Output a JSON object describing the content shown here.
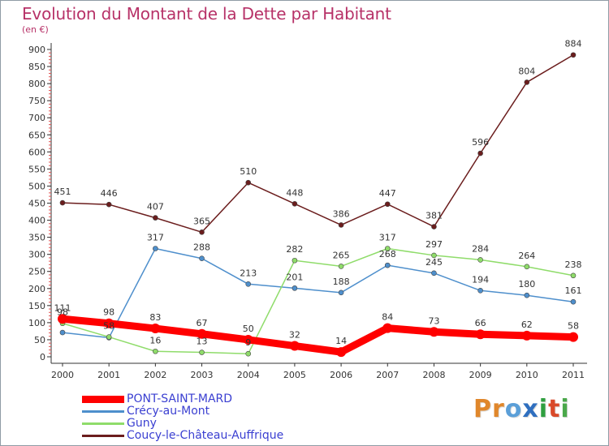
{
  "header": {
    "title": "Evolution du Montant de la Dette par Habitant",
    "subtitle": "(en €)"
  },
  "logo": {
    "text": "Proxiti",
    "colors": [
      "#e0872b",
      "#e0872b",
      "#5b9fd8",
      "#2f6fbf",
      "#2f9f3f",
      "#d94a2a",
      "#4aa84a"
    ]
  },
  "legend": {
    "items": [
      {
        "label": "PONT-SAINT-MARD",
        "color": "#ff0000"
      },
      {
        "label": "Crécy-au-Mont",
        "color": "#4e8fcc"
      },
      {
        "label": "Guny",
        "color": "#8fdc6a"
      },
      {
        "label": "Coucy-le-Château-Auffrique",
        "color": "#6b1d1d"
      }
    ]
  },
  "chart_data": {
    "type": "line",
    "title": "Evolution du Montant de la Dette par Habitant",
    "ylabel": "(en €)",
    "xlabel": "",
    "x": [
      "2000",
      "2001",
      "2002",
      "2003",
      "2004",
      "2005",
      "2006",
      "2007",
      "2008",
      "2009",
      "2010",
      "2011"
    ],
    "ylim": [
      0,
      900
    ],
    "yticks": [
      0,
      50,
      100,
      150,
      200,
      250,
      300,
      350,
      400,
      450,
      500,
      550,
      600,
      650,
      700,
      750,
      800,
      850,
      900
    ],
    "grid": false,
    "legend_position": "bottom-left",
    "series": [
      {
        "name": "PONT-SAINT-MARD",
        "color": "#ff0000",
        "values": [
          111,
          98,
          83,
          67,
          50,
          32,
          14,
          84,
          73,
          66,
          62,
          58
        ],
        "labels": [
          "111",
          "98",
          "83",
          "67",
          "50",
          "32",
          "14",
          "84",
          "73",
          "66",
          "62",
          "58"
        ]
      },
      {
        "name": "Crécy-au-Mont",
        "color": "#4e8fcc",
        "values": [
          71,
          56,
          317,
          288,
          213,
          201,
          188,
          268,
          245,
          194,
          180,
          161
        ],
        "labels": [
          "",
          "",
          "317",
          "288",
          "213",
          "201",
          "188",
          "268",
          "245",
          "194",
          "180",
          "161"
        ]
      },
      {
        "name": "Guny",
        "color": "#8fdc6a",
        "values": [
          98,
          58,
          16,
          13,
          9,
          282,
          265,
          317,
          297,
          284,
          264,
          238
        ],
        "labels": [
          "98",
          "58",
          "16",
          "13",
          "9",
          "282",
          "265",
          "317",
          "297",
          "284",
          "264",
          "238"
        ]
      },
      {
        "name": "Coucy-le-Château-Auffrique",
        "color": "#6b1d1d",
        "values": [
          451,
          446,
          407,
          365,
          510,
          448,
          386,
          447,
          381,
          596,
          804,
          884
        ],
        "labels": [
          "451",
          "446",
          "407",
          "365",
          "510",
          "448",
          "386",
          "447",
          "381",
          "596",
          "804",
          "884"
        ]
      }
    ]
  }
}
